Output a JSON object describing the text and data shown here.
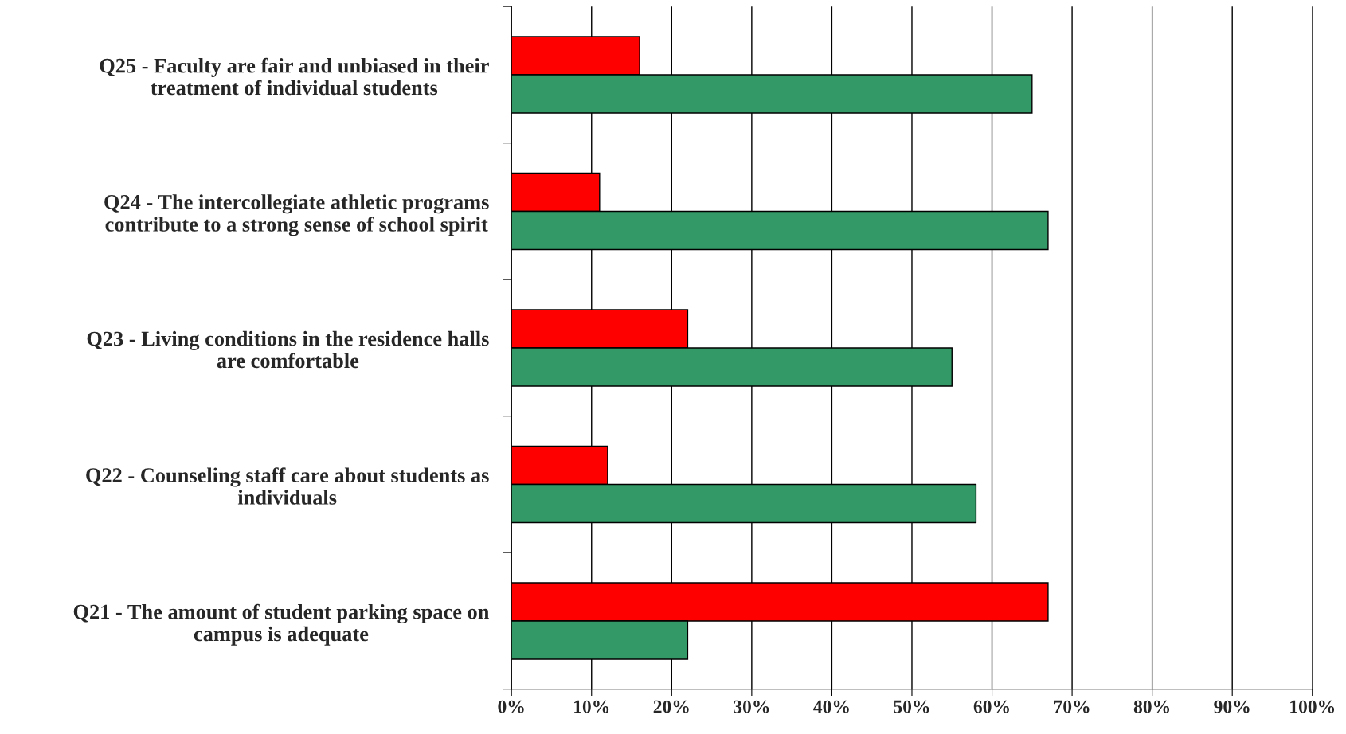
{
  "chart_data": {
    "type": "bar",
    "orientation": "horizontal",
    "categories": [
      "Q25 - Faculty are fair and unbiased in their\ntreatment of individual students",
      "Q24 - The intercollegiate athletic programs\ncontribute to a strong sense of school spirit",
      "Q23 - Living conditions in the residence halls\nare comfortable",
      "Q22 - Counseling staff care about students as\nindividuals",
      "Q21 - The amount of student parking space on\ncampus is adequate"
    ],
    "series": [
      {
        "color": "#ff0000",
        "values": [
          16,
          11,
          22,
          12,
          67
        ]
      },
      {
        "color": "#339966",
        "values": [
          65,
          67,
          55,
          58,
          22
        ]
      }
    ],
    "xlim": [
      0,
      100
    ],
    "xticks": [
      {
        "value": 0,
        "label": "0%"
      },
      {
        "value": 10,
        "label": "10%"
      },
      {
        "value": 20,
        "label": "20%"
      },
      {
        "value": 30,
        "label": "30%"
      },
      {
        "value": 40,
        "label": "40%"
      },
      {
        "value": 50,
        "label": "50%"
      },
      {
        "value": 60,
        "label": "60%"
      },
      {
        "value": 70,
        "label": "70%"
      },
      {
        "value": 80,
        "label": "80%"
      },
      {
        "value": 90,
        "label": "90%"
      },
      {
        "value": 100,
        "label": "100%"
      }
    ],
    "grid": "x",
    "legend": false
  }
}
